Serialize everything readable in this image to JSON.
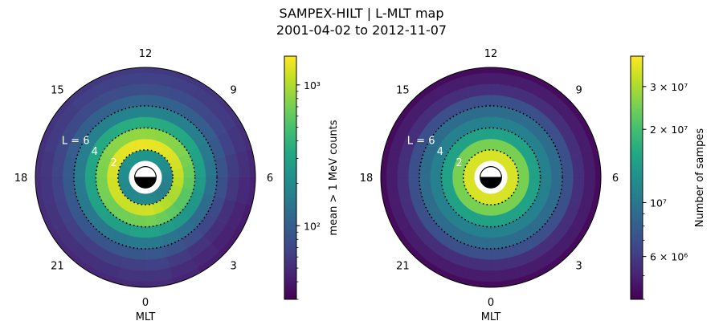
{
  "figure": {
    "title_line1": "SAMPEX-HILT | L-MLT map",
    "title_line2": "2001-04-02 to 2012-11-07"
  },
  "chart_data": [
    {
      "type": "polar-heatmap",
      "xlabel": "MLT",
      "theta_ticks": [
        "0",
        "3",
        "6",
        "9",
        "12",
        "15",
        "18",
        "21"
      ],
      "theta_tick_mlt": [
        0,
        3,
        6,
        9,
        12,
        15,
        18,
        21
      ],
      "l_bins": [
        1,
        2,
        3,
        4,
        5,
        6,
        7,
        8,
        9,
        10
      ],
      "mlt_bins": 24,
      "l_contours": [
        2,
        4,
        6
      ],
      "l_contour_labels": [
        "2",
        "4",
        "L = 6"
      ],
      "colorbar": {
        "label": "mean > 1 MeV counts",
        "scale": "log",
        "range": [
          30,
          1600
        ],
        "ticks": [
          {
            "value": 100,
            "label": "10^2"
          },
          {
            "value": 1000,
            "label": "10^3"
          }
        ]
      },
      "radial_profile": [
        null,
        200,
        1200,
        700,
        300,
        150,
        90,
        65,
        55,
        50
      ],
      "mlt_modulation": [
        1.0,
        0.92,
        0.85,
        0.8,
        0.82,
        0.88,
        0.95,
        1.02,
        1.08,
        1.12,
        1.15,
        1.18,
        1.2,
        1.18,
        1.15,
        1.12,
        1.08,
        1.05,
        1.02,
        1.0,
        0.98,
        0.96,
        0.97,
        0.99
      ]
    },
    {
      "type": "polar-heatmap",
      "xlabel": "MLT",
      "theta_ticks": [
        "0",
        "3",
        "6",
        "9",
        "12",
        "15",
        "18",
        "21"
      ],
      "theta_tick_mlt": [
        0,
        3,
        6,
        9,
        12,
        15,
        18,
        21
      ],
      "l_bins": [
        1,
        2,
        3,
        4,
        5,
        6,
        7,
        8,
        9,
        10
      ],
      "mlt_bins": 24,
      "l_contours": [
        2,
        4,
        6
      ],
      "l_contour_labels": [
        "2",
        "4",
        "L = 6"
      ],
      "colorbar": {
        "label": "Number of sampes",
        "scale": "log",
        "range": [
          4000000,
          40000000
        ],
        "ticks": [
          {
            "value": 6000000,
            "label": "6 × 10^6"
          },
          {
            "value": 10000000,
            "label": "10^7"
          },
          {
            "value": 20000000,
            "label": "2 × 10^7"
          },
          {
            "value": 30000000,
            "label": "3 × 10^7"
          }
        ]
      },
      "radial_profile": [
        null,
        35000000,
        25000000,
        15000000,
        11000000,
        9000000,
        7000000,
        5500000,
        4800000,
        4300000
      ],
      "mlt_modulation": [
        1.0,
        1.0,
        1.0,
        1.0,
        1.0,
        1.0,
        1.0,
        1.0,
        1.0,
        1.0,
        1.0,
        1.0,
        1.0,
        1.0,
        1.0,
        1.0,
        1.0,
        1.0,
        1.0,
        1.0,
        1.0,
        1.0,
        1.0,
        1.0
      ]
    }
  ]
}
